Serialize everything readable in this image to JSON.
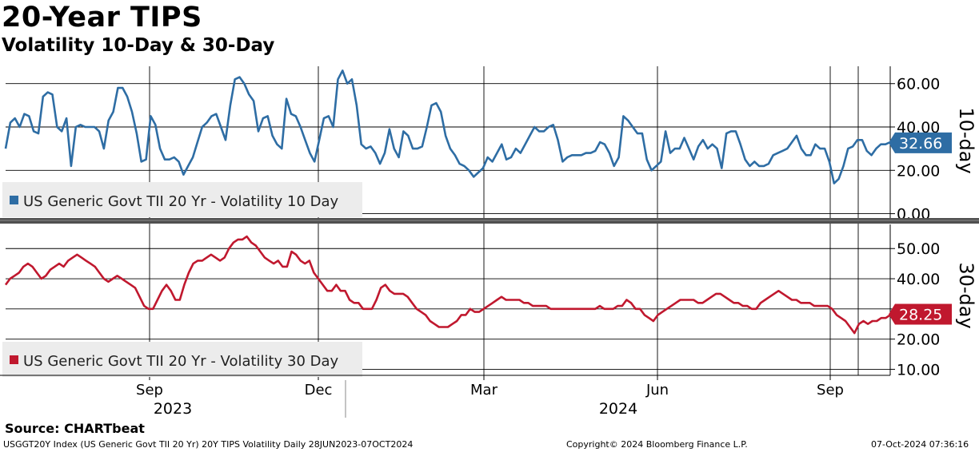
{
  "title": "20-Year TIPS",
  "subtitle": "Volatility 10-Day & 30-Day",
  "footer": {
    "source": "Source: CHARTbeat",
    "ticker": "USGGT20Y Index (US Generic Govt TII 20 Yr) 20Y TIPS Volatility  Daily 28JUN2023-07OCT2024",
    "copyright": "Copyright© 2024 Bloomberg Finance L.P.",
    "timestamp": "07-Oct-2024 07:36:16"
  },
  "colors": {
    "series_10d": "#2e6da4",
    "series_30d": "#c0182e",
    "grid": "#000000",
    "legend_bg": "#ececec"
  },
  "chart_data": [
    {
      "type": "line",
      "title": "10-day",
      "legend": "US Generic Govt TII 20 Yr - Volatility 10 Day",
      "last_value_label": "32.66",
      "y_range": [
        -2,
        70
      ],
      "y_ticks": [
        0,
        20,
        40,
        60
      ],
      "y_tick_labels": [
        "0.00",
        "20.00",
        "40.00",
        "60.00"
      ],
      "x_range": [
        0,
        1076
      ],
      "values": [
        30,
        42,
        44,
        40,
        46,
        45,
        38,
        37,
        54,
        56,
        55,
        40,
        38,
        44,
        22,
        40,
        41,
        40,
        40,
        40,
        38,
        30,
        43,
        47,
        58,
        58,
        54,
        47,
        37,
        24,
        25,
        45,
        41,
        30,
        25,
        25,
        26,
        24,
        18,
        22,
        26,
        33,
        40,
        42,
        45,
        46,
        40,
        34,
        50,
        62,
        63,
        60,
        55,
        52,
        38,
        44,
        45,
        36,
        32,
        30,
        53,
        46,
        45,
        40,
        34,
        28,
        24,
        34,
        44,
        45,
        40,
        62,
        66,
        60,
        62,
        50,
        32,
        30,
        31,
        28,
        23,
        28,
        39,
        30,
        26,
        38,
        36,
        30,
        30,
        31,
        40,
        50,
        51,
        47,
        36,
        30,
        27,
        23,
        22,
        20,
        17,
        19,
        21,
        26,
        24,
        28,
        32,
        25,
        26,
        30,
        28,
        32,
        36,
        40,
        38,
        38,
        40,
        41,
        34,
        24,
        26,
        27,
        27,
        27,
        28,
        28,
        29,
        33,
        32,
        28,
        22,
        26,
        45,
        43,
        40,
        37,
        37,
        25,
        20,
        22,
        24,
        38,
        28,
        30,
        30,
        35,
        30,
        25,
        31,
        34,
        30,
        32,
        30,
        21,
        37,
        38,
        38,
        32,
        25,
        22,
        24,
        22,
        22,
        23,
        27,
        28,
        29,
        30,
        33,
        36,
        30,
        27,
        27,
        32,
        30,
        30,
        24,
        14,
        16,
        22,
        30,
        31,
        34,
        34,
        29,
        27,
        30,
        32,
        32,
        33
      ]
    },
    {
      "type": "line",
      "title": "30-day",
      "legend": "US Generic Govt TII 20 Yr - Volatility 30 Day",
      "last_value_label": "28.25",
      "y_range": [
        8,
        58
      ],
      "y_ticks": [
        10,
        20,
        30,
        40,
        50
      ],
      "y_tick_labels": [
        "10.00",
        "20.00",
        "",
        "40.00",
        "50.00"
      ],
      "x_range": [
        0,
        1076
      ],
      "values": [
        38,
        40,
        41,
        42,
        44,
        45,
        44,
        42,
        40,
        41,
        43,
        44,
        45,
        44,
        46,
        47,
        48,
        47,
        46,
        45,
        44,
        42,
        40,
        39,
        40,
        41,
        40,
        39,
        38,
        37,
        34,
        31,
        30,
        30,
        33,
        36,
        38,
        36,
        33,
        33,
        38,
        42,
        45,
        46,
        46,
        47,
        48,
        47,
        46,
        47,
        50,
        52,
        53,
        53,
        54,
        52,
        51,
        49,
        47,
        46,
        45,
        46,
        44,
        44,
        49,
        48,
        46,
        45,
        46,
        42,
        40,
        38,
        36,
        36,
        38,
        36,
        36,
        33,
        32,
        32,
        30,
        30,
        30,
        33,
        37,
        38,
        36,
        35,
        35,
        35,
        34,
        32,
        30,
        29,
        28,
        26,
        25,
        24,
        24,
        24,
        25,
        26,
        28,
        28,
        30,
        29,
        29,
        30,
        31,
        32,
        33,
        34,
        33,
        33,
        33,
        33,
        32,
        32,
        31,
        31,
        31,
        31,
        30,
        30,
        30,
        30,
        30,
        30,
        30,
        30,
        30,
        30,
        30,
        31,
        30,
        30,
        30,
        31,
        31,
        33,
        32,
        30,
        30,
        28,
        27,
        26,
        28,
        29,
        30,
        31,
        32,
        33,
        33,
        33,
        33,
        32,
        32,
        33,
        34,
        35,
        35,
        34,
        33,
        32,
        32,
        31,
        31,
        30,
        30,
        32,
        33,
        34,
        35,
        36,
        35,
        34,
        33,
        33,
        32,
        32,
        32,
        31,
        31,
        31,
        31,
        30,
        28,
        27,
        26,
        24,
        22,
        25,
        26,
        25,
        26,
        26,
        27,
        27,
        28
      ]
    }
  ],
  "x_axis": {
    "month_ticks": [
      {
        "label": "Sep",
        "pos": 187
      },
      {
        "label": "Dec",
        "pos": 398
      },
      {
        "label": "Mar",
        "pos": 605
      },
      {
        "label": "Jun",
        "pos": 822
      },
      {
        "label": "Sep",
        "pos": 1038
      }
    ],
    "year_labels": [
      {
        "label": "2023",
        "pos": 216
      },
      {
        "label": "2024",
        "pos": 773
      }
    ]
  }
}
